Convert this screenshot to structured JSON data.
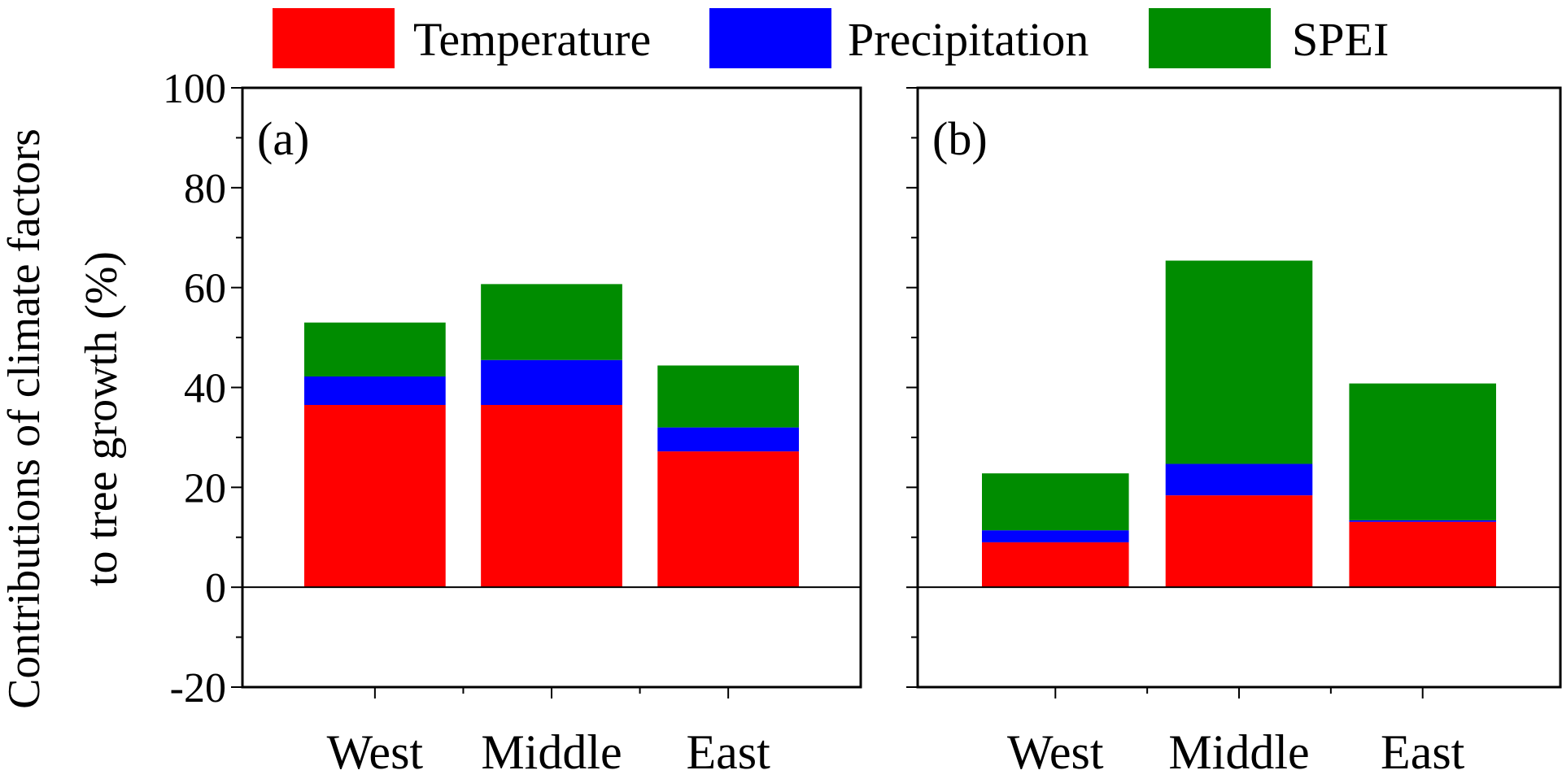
{
  "chart_data": {
    "type": "bar",
    "stacked": true,
    "ylabel": [
      "Contributions of climate factors",
      "to tree growth (%)"
    ],
    "ylim": [
      -20,
      100
    ],
    "yticks": [
      -20,
      0,
      20,
      40,
      60,
      80,
      100
    ],
    "categories": [
      "West",
      "Middle",
      "East"
    ],
    "legend": [
      "Temperature",
      "Precipitation",
      "SPEI"
    ],
    "colors": {
      "Temperature": "#ff0000",
      "Precipitation": "#0000ff",
      "SPEI": "#008c00"
    },
    "panels": [
      {
        "label": "(a)",
        "series": [
          {
            "name": "Temperature",
            "values": [
              36.5,
              36.5,
              27.2
            ]
          },
          {
            "name": "Precipitation",
            "values": [
              5.7,
              9.0,
              4.8
            ]
          },
          {
            "name": "SPEI",
            "values": [
              10.8,
              15.2,
              12.4
            ]
          }
        ]
      },
      {
        "label": "(b)",
        "series": [
          {
            "name": "Temperature",
            "values": [
              9.0,
              18.4,
              13.1
            ]
          },
          {
            "name": "Precipitation",
            "values": [
              2.4,
              6.3,
              0.3
            ]
          },
          {
            "name": "SPEI",
            "values": [
              11.4,
              40.7,
              27.4
            ]
          }
        ]
      }
    ]
  }
}
